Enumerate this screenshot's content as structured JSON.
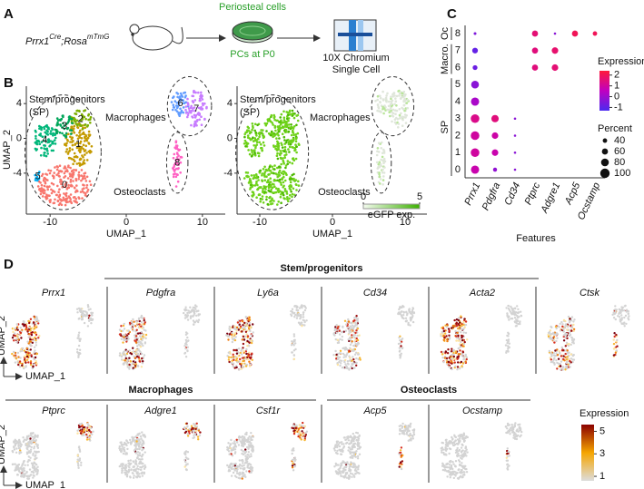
{
  "panel_a": {
    "label": "A",
    "genotype": [
      "Prrx1",
      "Cre",
      ";Rosa",
      "mTmG"
    ],
    "top_text": "Periosteal cells",
    "bottom_text": "PCs at P0",
    "chip_lines": [
      "10X Chromium",
      "Single Cell"
    ]
  },
  "panel_b": {
    "label": "B",
    "x_label": "UMAP_1",
    "y_label": "UMAP_2",
    "xlim": [
      -13,
      13
    ],
    "ylim": [
      -8.5,
      6
    ],
    "xticks": [
      -10,
      0,
      10
    ],
    "yticks": [
      -4,
      0,
      4
    ],
    "clusters": [
      "0",
      "1",
      "2",
      "3",
      "4",
      "5",
      "6",
      "7",
      "8"
    ],
    "annotations": [
      "Stem/progenitors",
      "(SP)",
      "Macrophages",
      "Osteoclasts"
    ],
    "gfp_legend": {
      "title": "eGFP exp.",
      "ticks": [
        0,
        5
      ]
    }
  },
  "panel_c": {
    "label": "C",
    "x_label": "Features",
    "features": [
      "Prrx1",
      "Pdgfra",
      "Cd34",
      "Ptprc",
      "Adgre1",
      "Acp5",
      "Ocstamp"
    ],
    "clusters": [
      "0",
      "1",
      "2",
      "3",
      "4",
      "5",
      "6",
      "7",
      "8"
    ],
    "groups": [
      "SP",
      "Macro.",
      "Oc"
    ],
    "expression": [
      [
        0.8,
        -0.2,
        -0.3,
        null,
        null,
        null,
        null
      ],
      [
        1.0,
        0.8,
        -0.3,
        null,
        null,
        null,
        null
      ],
      [
        1.0,
        0.9,
        -0.3,
        null,
        null,
        null,
        null
      ],
      [
        1.3,
        1.5,
        -0.3,
        null,
        null,
        null,
        null
      ],
      [
        0.2,
        null,
        null,
        null,
        null,
        null,
        null
      ],
      [
        -0.3,
        null,
        null,
        null,
        null,
        null,
        null
      ],
      [
        -0.8,
        null,
        null,
        1.5,
        1.6,
        null,
        null
      ],
      [
        -0.9,
        null,
        null,
        1.5,
        1.7,
        null,
        null
      ],
      [
        -0.5,
        null,
        null,
        1.6,
        -0.3,
        2,
        2
      ]
    ],
    "percent": [
      [
        85,
        35,
        15,
        null,
        null,
        null,
        null
      ],
      [
        90,
        65,
        15,
        null,
        null,
        null,
        null
      ],
      [
        90,
        65,
        15,
        null,
        null,
        null,
        null
      ],
      [
        90,
        75,
        15,
        null,
        null,
        null,
        null
      ],
      [
        85,
        null,
        null,
        null,
        null,
        null,
        null
      ],
      [
        80,
        null,
        null,
        null,
        null,
        null,
        null
      ],
      [
        45,
        null,
        null,
        60,
        65,
        null,
        null
      ],
      [
        55,
        null,
        null,
        60,
        65,
        null,
        null
      ],
      [
        20,
        null,
        null,
        60,
        15,
        60,
        40
      ]
    ],
    "expression_legend": {
      "title": "Expression",
      "lim": [
        -1.3,
        2.4
      ],
      "ticks": [
        -1,
        0,
        1,
        2
      ]
    },
    "percent_legend": {
      "title": "Percent",
      "values": [
        40,
        60,
        80,
        100
      ]
    }
  },
  "panel_d": {
    "label": "D",
    "groups": [
      {
        "title": "Stem/progenitors",
        "features": [
          "Prrx1",
          "Pdgfra",
          "Ly6a",
          "Cd34",
          "Acta2",
          "Ctsk"
        ]
      },
      {
        "title": "Macrophages",
        "features": [
          "Ptprc",
          "Adgre1",
          "Csf1r"
        ]
      },
      {
        "title": "Osteoclasts",
        "features": [
          "Acp5",
          "Ocstamp"
        ]
      }
    ],
    "axis_labels": [
      "UMAP_2",
      "UMAP_1"
    ],
    "legend": {
      "title": "Expression",
      "lim": [
        0.6,
        5.6
      ],
      "ticks": [
        1,
        3,
        5
      ]
    }
  }
}
